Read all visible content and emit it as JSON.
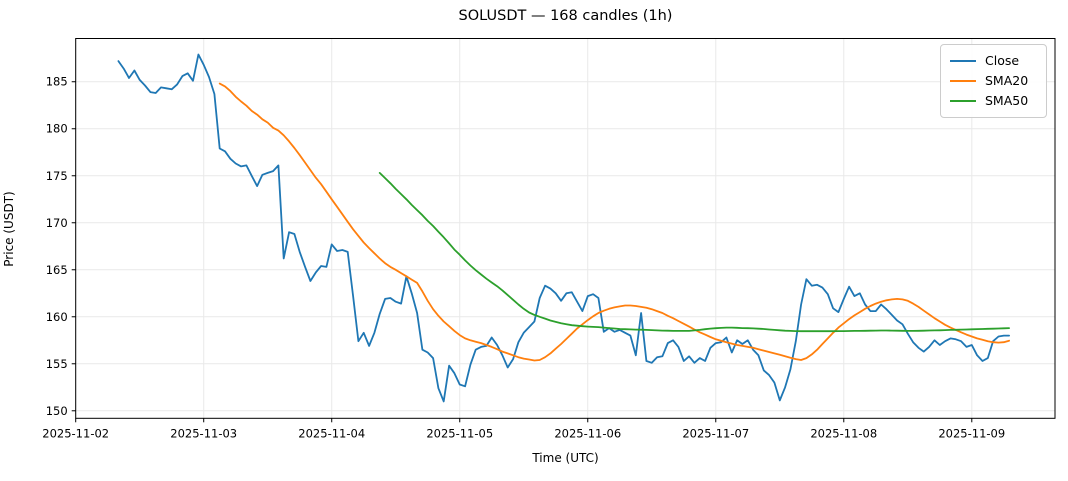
{
  "window": {
    "title": "SOLUSDT — 168 candles (1h)"
  },
  "chart_data": {
    "type": "line",
    "title": "SOLUSDT — 168 candles (1h)",
    "xlabel": "Time (UTC)",
    "ylabel": "Price (USDT)",
    "symbol": "SOLUSDT",
    "candle_count": 168,
    "interval": "1h",
    "grid": true,
    "background": "#ffffff",
    "grid_color": "#e9e9e9",
    "spine_color": "#000000",
    "ylim": [
      149.2,
      189.6
    ],
    "y_ticks": [
      150,
      155,
      160,
      165,
      170,
      175,
      180,
      185
    ],
    "xlim_index": [
      -8,
      175.6
    ],
    "x_tick_positions": [
      -8,
      16,
      40,
      64,
      88,
      112,
      136,
      160
    ],
    "x_tick_labels": [
      "2025-11-02",
      "2025-11-03",
      "2025-11-04",
      "2025-11-05",
      "2025-11-06",
      "2025-11-07",
      "2025-11-08",
      "2025-11-09"
    ],
    "legend": {
      "position": "upper right",
      "entries": [
        "Close",
        "SMA20",
        "SMA50"
      ]
    },
    "series": [
      {
        "name": "Close",
        "color": "#1f77b4",
        "start_index": 0,
        "values": [
          187.2,
          186.4,
          185.4,
          186.2,
          185.2,
          184.6,
          183.9,
          183.8,
          184.4,
          184.3,
          184.2,
          184.7,
          185.6,
          185.9,
          185.1,
          187.9,
          186.8,
          185.5,
          183.7,
          177.9,
          177.6,
          176.8,
          176.3,
          176.0,
          176.1,
          175.0,
          173.9,
          175.1,
          175.3,
          175.5,
          176.1,
          166.2,
          169.0,
          168.8,
          166.9,
          165.3,
          163.8,
          164.7,
          165.4,
          165.3,
          167.7,
          167.0,
          167.1,
          166.9,
          162.2,
          157.4,
          158.3,
          156.9,
          158.3,
          160.3,
          161.9,
          162.0,
          161.6,
          161.4,
          164.3,
          162.5,
          160.4,
          156.5,
          156.2,
          155.6,
          152.4,
          151.0,
          154.8,
          154.0,
          152.8,
          152.6,
          154.9,
          156.5,
          156.8,
          156.9,
          157.8,
          157.0,
          155.9,
          154.6,
          155.5,
          157.3,
          158.3,
          158.9,
          159.5,
          162.0,
          163.3,
          163.0,
          162.5,
          161.7,
          162.5,
          162.6,
          161.6,
          160.6,
          162.2,
          162.4,
          162.0,
          158.4,
          158.8,
          158.4,
          158.6,
          158.3,
          158.0,
          155.9,
          160.4,
          155.3,
          155.1,
          155.7,
          155.8,
          157.2,
          157.5,
          156.8,
          155.3,
          155.8,
          155.1,
          155.6,
          155.3,
          156.7,
          157.2,
          157.3,
          157.8,
          156.2,
          157.5,
          157.1,
          157.5,
          156.5,
          155.9,
          154.3,
          153.8,
          153.0,
          151.1,
          152.5,
          154.4,
          157.4,
          161.3,
          164.0,
          163.3,
          163.4,
          163.1,
          162.4,
          160.9,
          160.5,
          161.9,
          163.2,
          162.2,
          162.5,
          161.3,
          160.6,
          160.6,
          161.3,
          160.8,
          160.2,
          159.6,
          159.2,
          158.2,
          157.3,
          156.7,
          156.3,
          156.8,
          157.5,
          157.0,
          157.4,
          157.7,
          157.6,
          157.4,
          156.8,
          157.0,
          155.9,
          155.3,
          155.6,
          157.4,
          157.9,
          158.0,
          158.0
        ]
      },
      {
        "name": "SMA20",
        "color": "#ff7f0e",
        "start_index": 19,
        "values": [
          184.8,
          184.5,
          184.0,
          183.4,
          182.9,
          182.45,
          181.9,
          181.5,
          181.0,
          180.65,
          180.1,
          179.8,
          179.3,
          178.65,
          177.95,
          177.2,
          176.4,
          175.6,
          174.8,
          174.1,
          173.3,
          172.5,
          171.7,
          170.9,
          170.1,
          169.3,
          168.6,
          167.9,
          167.3,
          166.75,
          166.2,
          165.7,
          165.3,
          165.0,
          164.65,
          164.3,
          163.95,
          163.6,
          162.7,
          161.7,
          160.8,
          160.1,
          159.5,
          159.0,
          158.5,
          158.05,
          157.7,
          157.5,
          157.35,
          157.2,
          157.0,
          156.8,
          156.55,
          156.3,
          156.1,
          155.9,
          155.7,
          155.55,
          155.45,
          155.35,
          155.4,
          155.7,
          156.1,
          156.6,
          157.1,
          157.65,
          158.2,
          158.75,
          159.2,
          159.65,
          160.05,
          160.4,
          160.65,
          160.85,
          161.0,
          161.1,
          161.2,
          161.2,
          161.15,
          161.05,
          160.95,
          160.8,
          160.6,
          160.4,
          160.1,
          159.85,
          159.55,
          159.25,
          158.95,
          158.65,
          158.35,
          158.1,
          157.85,
          157.6,
          157.45,
          157.3,
          157.15,
          157.0,
          156.9,
          156.8,
          156.7,
          156.55,
          156.4,
          156.25,
          156.1,
          155.95,
          155.8,
          155.65,
          155.5,
          155.4,
          155.6,
          156.0,
          156.5,
          157.1,
          157.7,
          158.3,
          158.85,
          159.3,
          159.75,
          160.15,
          160.5,
          160.85,
          161.15,
          161.4,
          161.6,
          161.75,
          161.85,
          161.9,
          161.85,
          161.7,
          161.4,
          161.05,
          160.65,
          160.25,
          159.85,
          159.5,
          159.15,
          158.85,
          158.6,
          158.35,
          158.1,
          157.9,
          157.7,
          157.55,
          157.4,
          157.3,
          157.25,
          157.3,
          157.45
        ]
      },
      {
        "name": "SMA50",
        "color": "#2ca02c",
        "start_index": 49,
        "values": [
          175.3,
          174.75,
          174.2,
          173.6,
          173.05,
          172.5,
          171.9,
          171.35,
          170.8,
          170.2,
          169.65,
          169.05,
          168.45,
          167.8,
          167.15,
          166.6,
          166.0,
          165.45,
          164.95,
          164.5,
          164.05,
          163.65,
          163.25,
          162.8,
          162.3,
          161.8,
          161.3,
          160.85,
          160.45,
          160.2,
          160.0,
          159.8,
          159.6,
          159.45,
          159.3,
          159.2,
          159.1,
          159.05,
          159.0,
          158.95,
          158.92,
          158.9,
          158.85,
          158.8,
          158.75,
          158.7,
          158.68,
          158.66,
          158.64,
          158.62,
          158.6,
          158.58,
          158.55,
          158.53,
          158.52,
          158.5,
          158.5,
          158.5,
          158.5,
          158.55,
          158.6,
          158.68,
          158.74,
          158.78,
          158.82,
          158.85,
          158.85,
          158.83,
          158.8,
          158.78,
          158.76,
          158.73,
          158.7,
          158.65,
          158.6,
          158.56,
          158.52,
          158.5,
          158.48,
          158.47,
          158.46,
          158.46,
          158.46,
          158.46,
          158.47,
          158.47,
          158.48,
          158.48,
          158.49,
          158.5,
          158.5,
          158.51,
          158.52,
          158.53,
          158.54,
          158.54,
          158.53,
          158.52,
          158.51,
          158.5,
          158.5,
          158.51,
          158.52,
          158.54,
          158.55,
          158.56,
          158.58,
          158.6,
          158.61,
          158.63,
          158.65,
          158.67,
          158.69,
          158.7,
          158.72,
          158.73,
          158.75,
          158.77,
          158.8
        ]
      }
    ]
  }
}
